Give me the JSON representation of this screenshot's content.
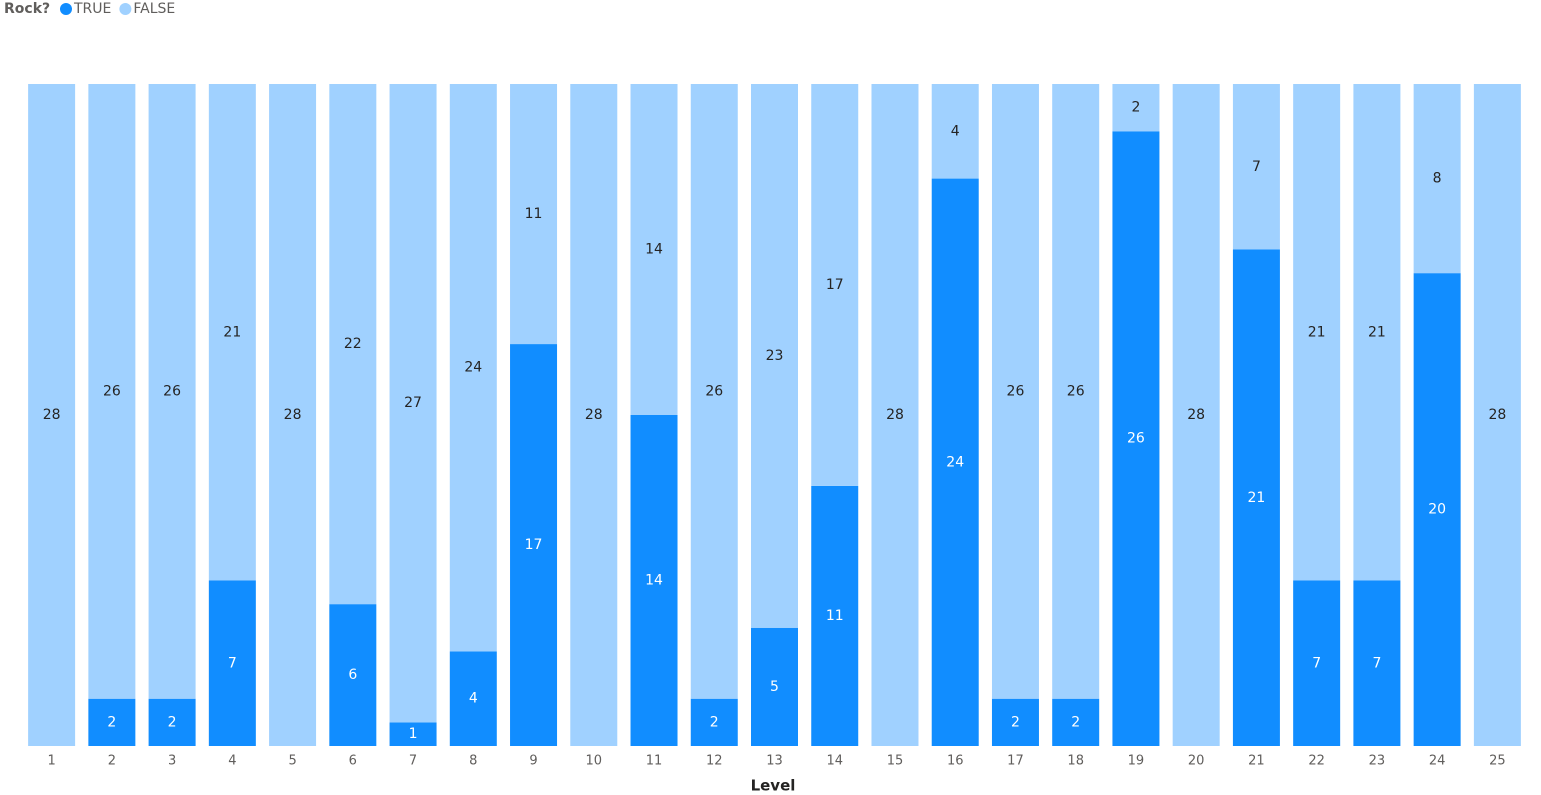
{
  "chart_data": {
    "type": "stacked-bar",
    "legend_title": "Rock?",
    "x_label": "Level",
    "categories": [
      "1",
      "2",
      "3",
      "4",
      "5",
      "6",
      "7",
      "8",
      "9",
      "10",
      "11",
      "12",
      "13",
      "14",
      "15",
      "16",
      "17",
      "18",
      "19",
      "20",
      "21",
      "22",
      "23",
      "24",
      "25"
    ],
    "series": [
      {
        "name": "TRUE",
        "color": "#118dff",
        "values": [
          null,
          2,
          2,
          7,
          null,
          6,
          1,
          4,
          17,
          null,
          14,
          2,
          5,
          11,
          null,
          24,
          2,
          2,
          26,
          null,
          21,
          7,
          7,
          20,
          null
        ]
      },
      {
        "name": "FALSE",
        "color": "#a0d1ff",
        "values": [
          28,
          26,
          26,
          21,
          28,
          22,
          27,
          24,
          11,
          28,
          14,
          26,
          23,
          17,
          28,
          4,
          26,
          26,
          2,
          28,
          7,
          21,
          21,
          8,
          28
        ]
      }
    ]
  }
}
